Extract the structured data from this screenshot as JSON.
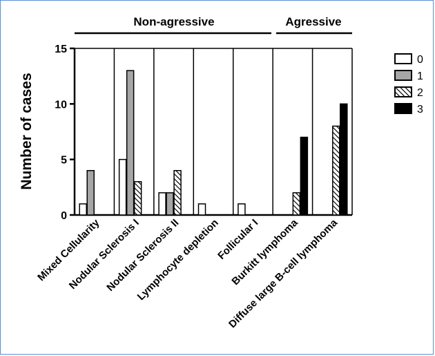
{
  "chart_data": {
    "type": "bar",
    "title": "",
    "xlabel": "",
    "ylabel": "Number of cases",
    "ylim": [
      0,
      15
    ],
    "yticks": [
      "0",
      "5",
      "10",
      "15"
    ],
    "yticks_values": [
      0,
      5,
      10,
      15
    ],
    "grid": false,
    "legend_position": "right",
    "categories": [
      "Mixed Cellularity",
      "Nodular Sclerosis I",
      "Nodular Sclerosis II",
      "Lymphocyte depletion",
      "Follicular I",
      "Burkitt lymphoma",
      "Diffuse large B-cell lymphoma"
    ],
    "groups": [
      {
        "label": "Non-agressive",
        "categories": [
          0,
          1,
          2,
          3,
          4
        ]
      },
      {
        "label": "Agressive",
        "categories": [
          5,
          6
        ]
      }
    ],
    "series": [
      {
        "name": "0",
        "fill": "#ffffff",
        "pattern": "none",
        "values": [
          1,
          5,
          2,
          1,
          1,
          0,
          0
        ]
      },
      {
        "name": "1",
        "fill": "#a6a6a6",
        "pattern": "none",
        "values": [
          4,
          13,
          2,
          0,
          0,
          0,
          0
        ]
      },
      {
        "name": "2",
        "fill": "#ffffff",
        "pattern": "diagonal-hatch",
        "values": [
          0,
          3,
          4,
          0,
          0,
          2,
          8
        ]
      },
      {
        "name": "3",
        "fill": "#000000",
        "pattern": "none",
        "values": [
          0,
          0,
          0,
          0,
          0,
          7,
          10
        ]
      }
    ]
  }
}
